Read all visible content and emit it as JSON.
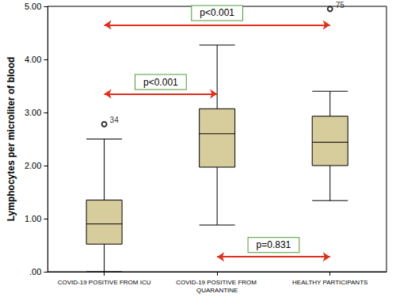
{
  "chart_data": {
    "type": "boxplot",
    "y_label": "Lymphocytes per microliter of blood",
    "categories": [
      "COVID-19 POSITIVE FROM ICU",
      "COVID-19 POSITIVE FROM QUARANTINE",
      "HEALTHY PARTICIPANTS"
    ],
    "boxes": [
      {
        "min": 0,
        "q1": 0.52,
        "median": 0.9,
        "q3": 1.35,
        "max": 2.5
      },
      {
        "min": 0.88,
        "q1": 1.97,
        "median": 2.6,
        "q3": 3.07,
        "max": 4.27
      },
      {
        "min": 1.34,
        "q1": 2.0,
        "median": 2.44,
        "q3": 2.93,
        "max": 3.4
      }
    ],
    "outliers": [
      {
        "category": "COVID-19 POSITIVE FROM ICU",
        "value": 2.78,
        "label": "34"
      },
      {
        "category": "HEALTHY PARTICIPANTS",
        "value": 4.95,
        "label": "75"
      }
    ],
    "annotations": [
      {
        "text": "p<0.001",
        "from": "COVID-19 POSITIVE FROM ICU",
        "to": "HEALTHY PARTICIPANTS",
        "y": 4.65
      },
      {
        "text": "p<0.001",
        "from": "COVID-19 POSITIVE FROM ICU",
        "to": "COVID-19 POSITIVE FROM QUARANTINE",
        "y": 3.35
      },
      {
        "text": "p=0.831",
        "from": "COVID-19 POSITIVE FROM QUARANTINE",
        "to": "HEALTHY PARTICIPANTS",
        "y": 0.28
      }
    ],
    "color": "#d6cc9c",
    "ylim": [
      0,
      5
    ],
    "yticks": [
      {
        "value": 0,
        "label": ".00"
      },
      {
        "value": 1,
        "label": "1.00"
      },
      {
        "value": 2,
        "label": "2.00"
      },
      {
        "value": 3,
        "label": "3.00"
      },
      {
        "value": 4,
        "label": "4.00"
      },
      {
        "value": 5,
        "label": "5.00"
      }
    ],
    "grid": false
  }
}
